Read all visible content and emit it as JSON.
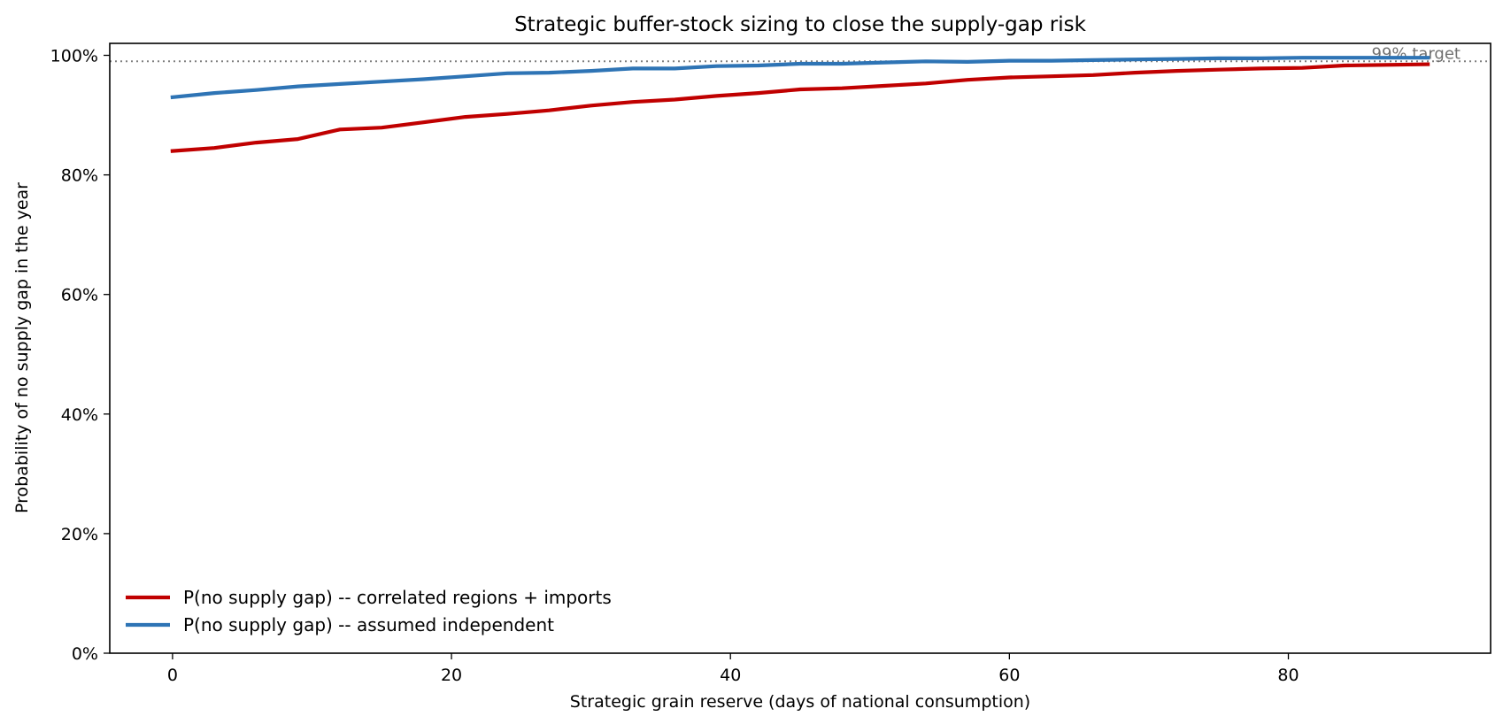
{
  "chart_data": {
    "type": "line",
    "title": "Strategic buffer-stock sizing to close the supply-gap risk",
    "xlabel": "Strategic grain reserve  (days of national consumption)",
    "ylabel": "Probability of no supply gap in the year",
    "xlim": [
      -4.5,
      94.5
    ],
    "ylim": [
      0,
      1.02
    ],
    "x_ticks": [
      0,
      20,
      40,
      60,
      80
    ],
    "x_tick_labels": [
      "0",
      "20",
      "40",
      "60",
      "80"
    ],
    "y_ticks": [
      0,
      0.2,
      0.4,
      0.6,
      0.8,
      1.0
    ],
    "y_tick_labels": [
      "0%",
      "20%",
      "40%",
      "60%",
      "80%",
      "100%"
    ],
    "grid": false,
    "legend_position": "lower-left",
    "x": [
      0,
      3,
      6,
      9,
      12,
      15,
      18,
      21,
      24,
      27,
      30,
      33,
      36,
      39,
      42,
      45,
      48,
      51,
      54,
      57,
      60,
      63,
      66,
      69,
      72,
      75,
      78,
      81,
      84,
      87,
      90
    ],
    "series": [
      {
        "name": "P(no supply gap) -- correlated regions + imports",
        "color": "#c00000",
        "values": [
          0.84,
          0.845,
          0.854,
          0.86,
          0.876,
          0.879,
          0.888,
          0.897,
          0.902,
          0.908,
          0.916,
          0.922,
          0.926,
          0.932,
          0.937,
          0.943,
          0.945,
          0.949,
          0.953,
          0.959,
          0.963,
          0.965,
          0.967,
          0.971,
          0.974,
          0.976,
          0.978,
          0.979,
          0.983,
          0.984,
          0.985
        ]
      },
      {
        "name": "P(no supply gap) -- assumed independent",
        "color": "#2e74b5",
        "values": [
          0.93,
          0.937,
          0.942,
          0.948,
          0.952,
          0.956,
          0.96,
          0.965,
          0.97,
          0.971,
          0.974,
          0.978,
          0.978,
          0.982,
          0.983,
          0.986,
          0.986,
          0.988,
          0.99,
          0.989,
          0.991,
          0.991,
          0.992,
          0.993,
          0.994,
          0.995,
          0.995,
          0.996,
          0.996,
          0.996,
          0.996
        ]
      }
    ],
    "target": {
      "value": 0.99,
      "label": "99% target",
      "color": "#808080"
    }
  }
}
